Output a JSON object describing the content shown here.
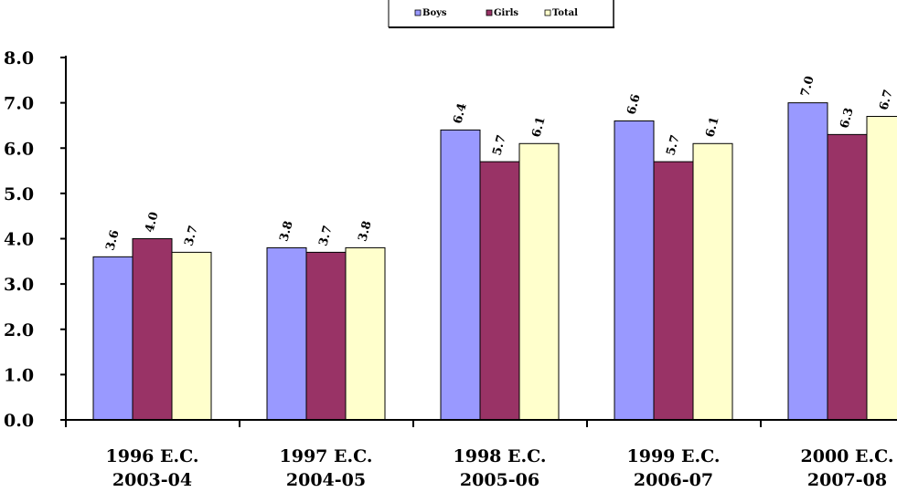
{
  "chart_data": {
    "type": "bar",
    "categories": [
      [
        "1996 E.C.",
        "2003-04"
      ],
      [
        "1997 E.C.",
        "2004-05"
      ],
      [
        "1998 E.C.",
        "2005-06"
      ],
      [
        "1999 E.C.",
        "2006-07"
      ],
      [
        "2000 E.C.",
        "2007-08"
      ]
    ],
    "series": [
      {
        "name": "Boys",
        "color": "#9999ff",
        "values": [
          3.6,
          3.8,
          6.4,
          6.6,
          7.0
        ]
      },
      {
        "name": "Girls",
        "color": "#993366",
        "values": [
          4.0,
          3.7,
          5.7,
          5.7,
          6.3
        ]
      },
      {
        "name": "Total",
        "color": "#ffffcc",
        "values": [
          3.7,
          3.8,
          6.1,
          6.1,
          6.7
        ]
      }
    ],
    "y_ticks": [
      "0.0",
      "1.0",
      "2.0",
      "3.0",
      "4.0",
      "5.0",
      "6.0",
      "7.0",
      "8.0"
    ],
    "ylim": [
      0,
      8
    ],
    "grid": false,
    "legend_position": "top"
  }
}
